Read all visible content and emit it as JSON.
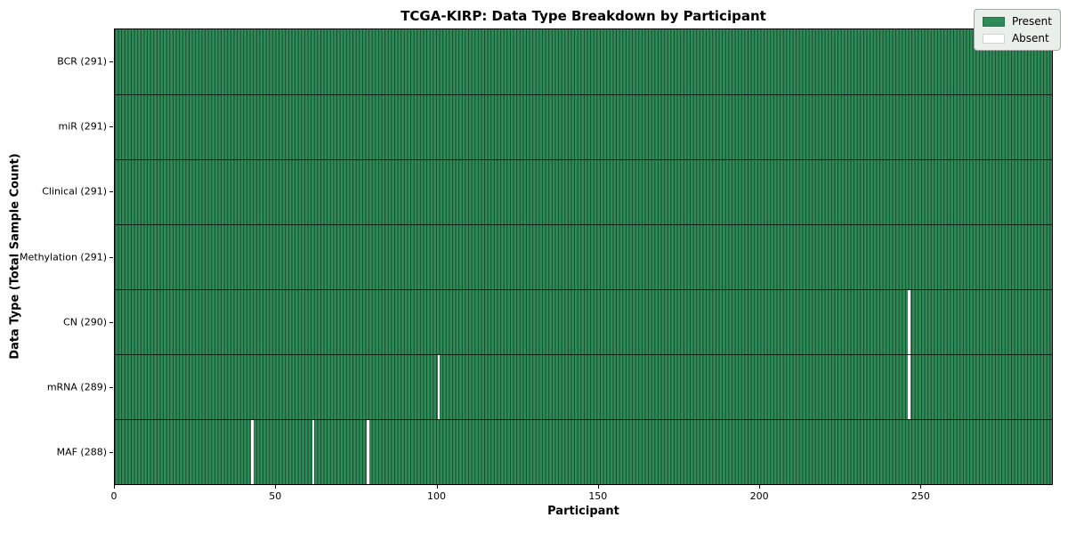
{
  "chart_data": {
    "type": "heatmap",
    "title": "TCGA-KIRP: Data Type Breakdown by Participant",
    "xlabel": "Participant",
    "ylabel": "Data Type (Total Sample Count)",
    "n_participants": 291,
    "n_rows": 7,
    "x_range": [
      0,
      291
    ],
    "x_ticks": [
      0,
      50,
      100,
      150,
      200,
      250
    ],
    "rows": [
      {
        "label": "BCR (291)",
        "data_type": "BCR",
        "total": 291,
        "absent_participants": []
      },
      {
        "label": "miR (291)",
        "data_type": "miR",
        "total": 291,
        "absent_participants": []
      },
      {
        "label": "Clinical (291)",
        "data_type": "Clinical",
        "total": 291,
        "absent_participants": []
      },
      {
        "label": "Methylation (291)",
        "data_type": "Methylation",
        "total": 291,
        "absent_participants": []
      },
      {
        "label": "CN (290)",
        "data_type": "CN",
        "total": 290,
        "absent_participants": [
          246
        ]
      },
      {
        "label": "mRNA (289)",
        "data_type": "mRNA",
        "total": 289,
        "absent_participants": [
          100,
          246
        ]
      },
      {
        "label": "MAF (288)",
        "data_type": "MAF",
        "total": 288,
        "absent_participants": [
          42,
          61,
          78
        ]
      }
    ],
    "legend": [
      {
        "label": "Present",
        "color": "#2e8b57"
      },
      {
        "label": "Absent",
        "color": "#ffffff"
      }
    ],
    "legend_position": "upper right",
    "grid": "cell-edges",
    "colors": {
      "present": "#2e8b57",
      "absent": "#ffffff",
      "cell_edge": "#17462c",
      "row_divider": "#091c11",
      "plot_border": "#000000",
      "legend_bg": "#e9efe9",
      "legend_border": "#a6a6a6",
      "text": "#000000"
    }
  }
}
